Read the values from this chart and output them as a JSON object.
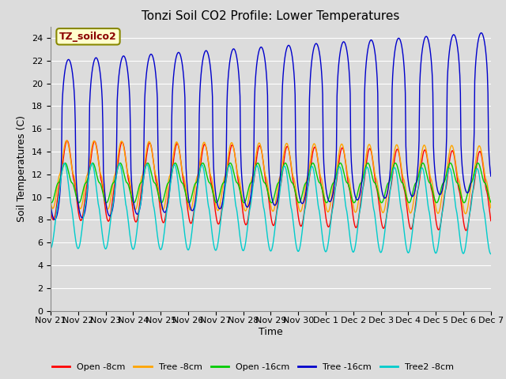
{
  "title": "Tonzi Soil CO2 Profile: Lower Temperatures",
  "ylabel": "Soil Temperatures (C)",
  "xlabel": "Time",
  "annotation": "TZ_soilco2",
  "annotation_color": "#8B0000",
  "annotation_bg": "#FFFFCC",
  "ylim": [
    0,
    25
  ],
  "yticks": [
    0,
    2,
    4,
    6,
    8,
    10,
    12,
    14,
    16,
    18,
    20,
    22,
    24
  ],
  "bg_color": "#DCDCDC",
  "plot_bg_color": "#DCDCDC",
  "legend": [
    "Open -8cm",
    "Tree -8cm",
    "Open -16cm",
    "Tree -16cm",
    "Tree2 -8cm"
  ],
  "colors": [
    "#FF0000",
    "#FFA500",
    "#00CC00",
    "#0000CC",
    "#00CCCC"
  ],
  "n_days": 16,
  "start_day": 21,
  "title_fontsize": 11,
  "label_fontsize": 9,
  "tick_fontsize": 8
}
